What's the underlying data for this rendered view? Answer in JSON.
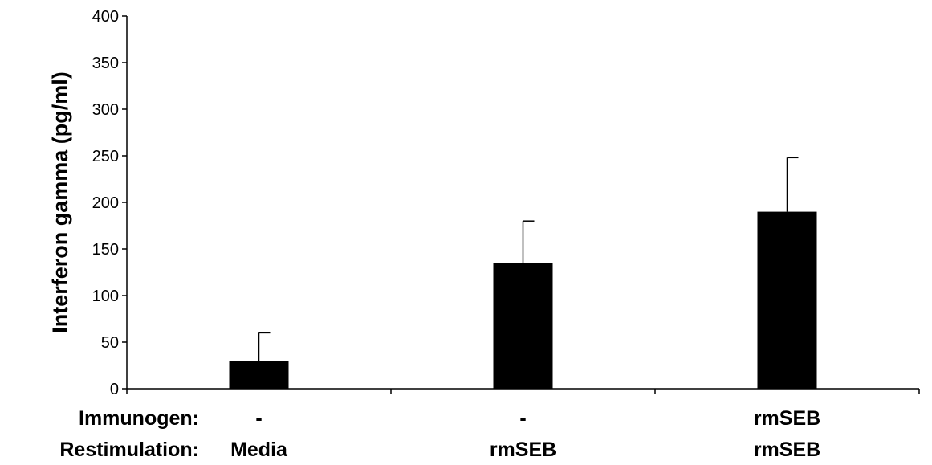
{
  "chart_data": {
    "type": "bar",
    "title": "",
    "ylabel": "Interferon gamma (pg/ml)",
    "xlabel": "",
    "ylim": [
      0,
      400
    ],
    "yticks": [
      0,
      50,
      100,
      150,
      200,
      250,
      300,
      350,
      400
    ],
    "categories": [
      "Media",
      "rmSEB",
      "rmSEB"
    ],
    "values": [
      30,
      135,
      190
    ],
    "error_upper": [
      60,
      180,
      248
    ],
    "bar_color": "#000000",
    "grid": false,
    "legend": "none",
    "row_labels": {
      "immunogen": {
        "label": "Immunogen:",
        "values": [
          "-",
          "-",
          "rmSEB"
        ]
      },
      "restimulation": {
        "label": "Restimulation:",
        "values": [
          "Media",
          "rmSEB",
          "rmSEB"
        ]
      }
    }
  }
}
